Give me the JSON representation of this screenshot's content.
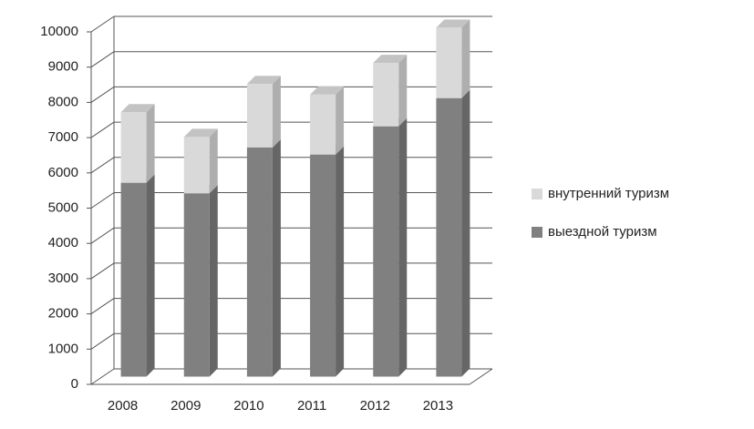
{
  "chart_data": {
    "type": "bar3d-stacked",
    "categories": [
      "2008",
      "2009",
      "2010",
      "2011",
      "2012",
      "2013"
    ],
    "series": [
      {
        "name": "выездной туризм",
        "color": "#808080",
        "values": [
          5500,
          5200,
          6500,
          6300,
          7100,
          7900
        ]
      },
      {
        "name": "внутренний туризм",
        "color": "#d9d9d9",
        "values": [
          2000,
          1600,
          1800,
          1700,
          1800,
          2000
        ]
      }
    ],
    "ylim": [
      0,
      10000
    ],
    "yticks": [
      0,
      1000,
      2000,
      3000,
      4000,
      5000,
      6000,
      7000,
      8000,
      9000,
      10000
    ],
    "grid": true
  }
}
